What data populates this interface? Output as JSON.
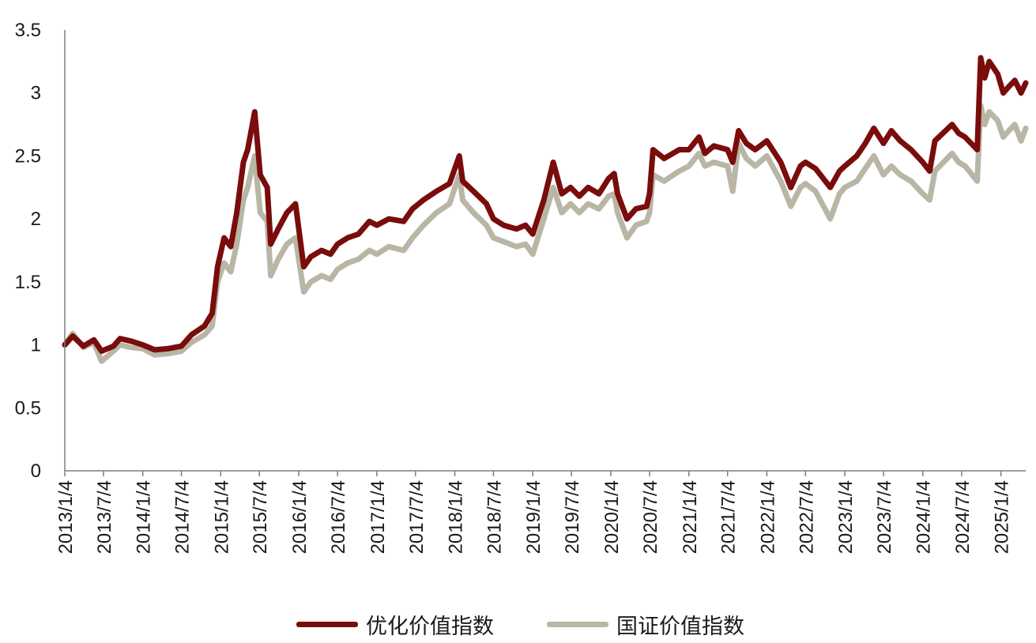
{
  "chart_data": {
    "type": "line",
    "ylim": [
      0,
      3.5
    ],
    "y_ticks": [
      "0",
      "0.5",
      "1",
      "1.5",
      "2",
      "2.5",
      "3",
      "3.5"
    ],
    "x_tick_labels": [
      "2013/1/4",
      "2013/7/4",
      "2014/1/4",
      "2014/7/4",
      "2015/1/4",
      "2015/7/4",
      "2016/1/4",
      "2016/7/4",
      "2017/1/4",
      "2017/7/4",
      "2018/1/4",
      "2018/7/4",
      "2019/1/4",
      "2019/7/4",
      "2020/1/4",
      "2020/7/4",
      "2021/1/4",
      "2021/7/4",
      "2022/1/4",
      "2022/7/4",
      "2023/1/4",
      "2023/7/4",
      "2024/1/4",
      "2024/7/4",
      "2025/1/4"
    ],
    "x_range": [
      "2013/1/4",
      "2025/4/30"
    ],
    "grid": false,
    "legend_position": "bottom",
    "series": [
      {
        "name": "优化价值指数",
        "color": "#7a0c0c",
        "points": [
          [
            "2013/1/4",
            1.0
          ],
          [
            "2013/2/10",
            1.07
          ],
          [
            "2013/4/1",
            0.99
          ],
          [
            "2013/5/20",
            1.04
          ],
          [
            "2013/6/25",
            0.95
          ],
          [
            "2013/8/20",
            0.99
          ],
          [
            "2013/9/20",
            1.05
          ],
          [
            "2013/11/10",
            1.03
          ],
          [
            "2014/1/4",
            1.0
          ],
          [
            "2014/3/1",
            0.96
          ],
          [
            "2014/5/1",
            0.97
          ],
          [
            "2014/7/4",
            0.99
          ],
          [
            "2014/8/20",
            1.08
          ],
          [
            "2014/10/20",
            1.15
          ],
          [
            "2014/11/25",
            1.25
          ],
          [
            "2014/12/20",
            1.62
          ],
          [
            "2015/1/20",
            1.85
          ],
          [
            "2015/2/20",
            1.78
          ],
          [
            "2015/3/20",
            2.05
          ],
          [
            "2015/4/20",
            2.45
          ],
          [
            "2015/5/10",
            2.55
          ],
          [
            "2015/6/12",
            2.85
          ],
          [
            "2015/7/8",
            2.35
          ],
          [
            "2015/8/10",
            2.25
          ],
          [
            "2015/8/26",
            1.8
          ],
          [
            "2015/9/30",
            1.92
          ],
          [
            "2015/11/10",
            2.05
          ],
          [
            "2015/12/20",
            2.12
          ],
          [
            "2016/1/28",
            1.62
          ],
          [
            "2016/3/1",
            1.7
          ],
          [
            "2016/4/20",
            1.75
          ],
          [
            "2016/6/1",
            1.72
          ],
          [
            "2016/7/4",
            1.8
          ],
          [
            "2016/8/20",
            1.85
          ],
          [
            "2016/10/10",
            1.88
          ],
          [
            "2016/11/30",
            1.98
          ],
          [
            "2017/1/4",
            1.95
          ],
          [
            "2017/3/1",
            2.0
          ],
          [
            "2017/5/10",
            1.98
          ],
          [
            "2017/6/20",
            2.08
          ],
          [
            "2017/8/10",
            2.15
          ],
          [
            "2017/10/10",
            2.22
          ],
          [
            "2017/12/10",
            2.28
          ],
          [
            "2018/1/25",
            2.5
          ],
          [
            "2018/2/10",
            2.3
          ],
          [
            "2018/4/1",
            2.22
          ],
          [
            "2018/6/1",
            2.12
          ],
          [
            "2018/7/4",
            2.0
          ],
          [
            "2018/8/20",
            1.95
          ],
          [
            "2018/10/20",
            1.92
          ],
          [
            "2018/12/1",
            1.95
          ],
          [
            "2019/1/4",
            1.88
          ],
          [
            "2019/2/25",
            2.15
          ],
          [
            "2019/4/10",
            2.45
          ],
          [
            "2019/5/20",
            2.2
          ],
          [
            "2019/6/30",
            2.25
          ],
          [
            "2019/8/10",
            2.18
          ],
          [
            "2019/9/20",
            2.25
          ],
          [
            "2019/11/10",
            2.2
          ],
          [
            "2019/12/25",
            2.32
          ],
          [
            "2020/1/20",
            2.36
          ],
          [
            "2020/2/5",
            2.2
          ],
          [
            "2020/3/20",
            2.0
          ],
          [
            "2020/5/1",
            2.08
          ],
          [
            "2020/6/20",
            2.1
          ],
          [
            "2020/7/4",
            2.2
          ],
          [
            "2020/7/20",
            2.55
          ],
          [
            "2020/9/10",
            2.48
          ],
          [
            "2020/11/20",
            2.55
          ],
          [
            "2021/1/4",
            2.55
          ],
          [
            "2021/2/20",
            2.65
          ],
          [
            "2021/3/20",
            2.52
          ],
          [
            "2021/5/1",
            2.58
          ],
          [
            "2021/7/4",
            2.55
          ],
          [
            "2021/7/28",
            2.45
          ],
          [
            "2021/8/25",
            2.7
          ],
          [
            "2021/9/30",
            2.6
          ],
          [
            "2021/11/10",
            2.55
          ],
          [
            "2022/1/4",
            2.62
          ],
          [
            "2022/3/10",
            2.45
          ],
          [
            "2022/4/26",
            2.25
          ],
          [
            "2022/6/10",
            2.42
          ],
          [
            "2022/7/4",
            2.45
          ],
          [
            "2022/8/20",
            2.4
          ],
          [
            "2022/10/28",
            2.25
          ],
          [
            "2022/12/10",
            2.38
          ],
          [
            "2023/1/4",
            2.42
          ],
          [
            "2023/3/1",
            2.5
          ],
          [
            "2023/4/10",
            2.6
          ],
          [
            "2023/5/20",
            2.72
          ],
          [
            "2023/7/4",
            2.6
          ],
          [
            "2023/8/10",
            2.7
          ],
          [
            "2023/9/20",
            2.62
          ],
          [
            "2023/11/10",
            2.55
          ],
          [
            "2024/1/4",
            2.45
          ],
          [
            "2024/2/5",
            2.38
          ],
          [
            "2024/3/1",
            2.62
          ],
          [
            "2024/5/20",
            2.75
          ],
          [
            "2024/6/20",
            2.68
          ],
          [
            "2024/7/20",
            2.65
          ],
          [
            "2024/9/15",
            2.55
          ],
          [
            "2024/10/1",
            3.28
          ],
          [
            "2024/10/20",
            3.12
          ],
          [
            "2024/11/10",
            3.25
          ],
          [
            "2024/12/20",
            3.15
          ],
          [
            "2025/1/15",
            3.0
          ],
          [
            "2025/2/10",
            3.05
          ],
          [
            "2025/3/10",
            3.1
          ],
          [
            "2025/4/8",
            3.0
          ],
          [
            "2025/4/30",
            3.08
          ]
        ]
      },
      {
        "name": "国证价值指数",
        "color": "#b9b6a6",
        "points": [
          [
            "2013/1/4",
            1.0
          ],
          [
            "2013/2/10",
            1.09
          ],
          [
            "2013/4/1",
            0.98
          ],
          [
            "2013/5/20",
            1.02
          ],
          [
            "2013/6/25",
            0.87
          ],
          [
            "2013/8/20",
            0.95
          ],
          [
            "2013/9/20",
            1.0
          ],
          [
            "2013/11/10",
            0.98
          ],
          [
            "2014/1/4",
            0.97
          ],
          [
            "2014/3/1",
            0.92
          ],
          [
            "2014/5/1",
            0.93
          ],
          [
            "2014/7/4",
            0.95
          ],
          [
            "2014/8/20",
            1.02
          ],
          [
            "2014/10/20",
            1.08
          ],
          [
            "2014/11/25",
            1.15
          ],
          [
            "2014/12/20",
            1.5
          ],
          [
            "2015/1/20",
            1.65
          ],
          [
            "2015/2/20",
            1.58
          ],
          [
            "2015/3/20",
            1.8
          ],
          [
            "2015/4/20",
            2.15
          ],
          [
            "2015/5/10",
            2.25
          ],
          [
            "2015/6/12",
            2.5
          ],
          [
            "2015/7/8",
            2.05
          ],
          [
            "2015/8/10",
            1.98
          ],
          [
            "2015/8/26",
            1.55
          ],
          [
            "2015/9/30",
            1.68
          ],
          [
            "2015/11/10",
            1.8
          ],
          [
            "2015/12/20",
            1.85
          ],
          [
            "2016/1/28",
            1.42
          ],
          [
            "2016/3/1",
            1.5
          ],
          [
            "2016/4/20",
            1.55
          ],
          [
            "2016/6/1",
            1.52
          ],
          [
            "2016/7/4",
            1.6
          ],
          [
            "2016/8/20",
            1.65
          ],
          [
            "2016/10/10",
            1.68
          ],
          [
            "2016/11/30",
            1.75
          ],
          [
            "2017/1/4",
            1.72
          ],
          [
            "2017/3/1",
            1.78
          ],
          [
            "2017/5/10",
            1.75
          ],
          [
            "2017/6/20",
            1.85
          ],
          [
            "2017/8/10",
            1.95
          ],
          [
            "2017/10/10",
            2.05
          ],
          [
            "2017/12/10",
            2.12
          ],
          [
            "2018/1/25",
            2.35
          ],
          [
            "2018/2/10",
            2.15
          ],
          [
            "2018/4/1",
            2.05
          ],
          [
            "2018/6/1",
            1.95
          ],
          [
            "2018/7/4",
            1.85
          ],
          [
            "2018/8/20",
            1.82
          ],
          [
            "2018/10/20",
            1.78
          ],
          [
            "2018/12/1",
            1.8
          ],
          [
            "2019/1/4",
            1.72
          ],
          [
            "2019/2/25",
            2.0
          ],
          [
            "2019/4/10",
            2.25
          ],
          [
            "2019/5/20",
            2.05
          ],
          [
            "2019/6/30",
            2.12
          ],
          [
            "2019/8/10",
            2.05
          ],
          [
            "2019/9/20",
            2.12
          ],
          [
            "2019/11/10",
            2.08
          ],
          [
            "2019/12/25",
            2.18
          ],
          [
            "2020/1/20",
            2.2
          ],
          [
            "2020/2/5",
            2.05
          ],
          [
            "2020/3/20",
            1.85
          ],
          [
            "2020/5/1",
            1.95
          ],
          [
            "2020/6/20",
            1.98
          ],
          [
            "2020/7/4",
            2.05
          ],
          [
            "2020/7/20",
            2.35
          ],
          [
            "2020/9/10",
            2.3
          ],
          [
            "2020/11/20",
            2.38
          ],
          [
            "2021/1/4",
            2.42
          ],
          [
            "2021/2/20",
            2.52
          ],
          [
            "2021/3/20",
            2.42
          ],
          [
            "2021/5/1",
            2.45
          ],
          [
            "2021/7/4",
            2.42
          ],
          [
            "2021/7/28",
            2.22
          ],
          [
            "2021/8/25",
            2.6
          ],
          [
            "2021/9/30",
            2.48
          ],
          [
            "2021/11/10",
            2.42
          ],
          [
            "2022/1/4",
            2.5
          ],
          [
            "2022/3/10",
            2.3
          ],
          [
            "2022/4/26",
            2.1
          ],
          [
            "2022/6/10",
            2.25
          ],
          [
            "2022/7/4",
            2.28
          ],
          [
            "2022/8/20",
            2.22
          ],
          [
            "2022/10/28",
            2.0
          ],
          [
            "2022/12/10",
            2.2
          ],
          [
            "2023/1/4",
            2.25
          ],
          [
            "2023/3/1",
            2.3
          ],
          [
            "2023/4/10",
            2.4
          ],
          [
            "2023/5/20",
            2.5
          ],
          [
            "2023/7/4",
            2.35
          ],
          [
            "2023/8/10",
            2.42
          ],
          [
            "2023/9/20",
            2.35
          ],
          [
            "2023/11/10",
            2.3
          ],
          [
            "2024/1/4",
            2.2
          ],
          [
            "2024/2/5",
            2.15
          ],
          [
            "2024/3/1",
            2.38
          ],
          [
            "2024/5/20",
            2.52
          ],
          [
            "2024/6/20",
            2.45
          ],
          [
            "2024/7/20",
            2.42
          ],
          [
            "2024/9/15",
            2.3
          ],
          [
            "2024/10/1",
            2.9
          ],
          [
            "2024/10/20",
            2.75
          ],
          [
            "2024/11/10",
            2.85
          ],
          [
            "2024/12/20",
            2.78
          ],
          [
            "2025/1/15",
            2.65
          ],
          [
            "2025/2/10",
            2.7
          ],
          [
            "2025/3/10",
            2.75
          ],
          [
            "2025/4/8",
            2.62
          ],
          [
            "2025/4/30",
            2.72
          ]
        ]
      }
    ]
  }
}
